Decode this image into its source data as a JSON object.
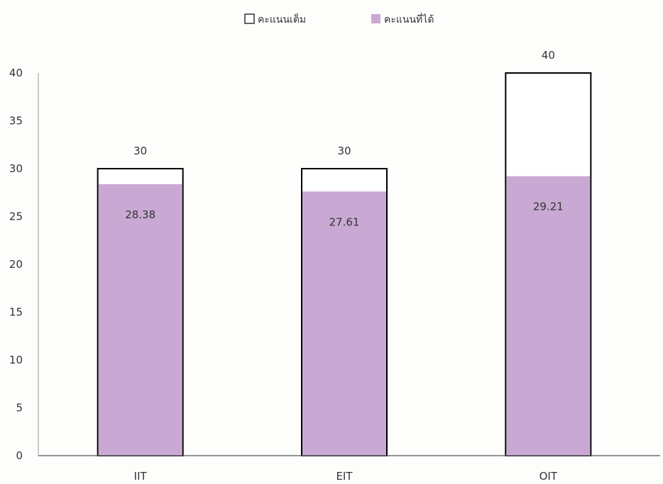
{
  "chart_data": {
    "type": "bar",
    "title": "",
    "xlabel": "",
    "ylabel": "",
    "categories": [
      "IIT",
      "EIT",
      "OIT"
    ],
    "series": [
      {
        "name": "คะแนนเต็ม",
        "values": [
          30,
          30,
          40
        ],
        "color": "#ffffff",
        "stroke": "#000000"
      },
      {
        "name": "คะแนนที่ได้",
        "values": [
          28.38,
          27.61,
          29.21
        ],
        "color": "#c9a9d3"
      }
    ],
    "data_labels": {
      "full": [
        "30",
        "30",
        "40"
      ],
      "obtained": [
        "28.38",
        "27.61",
        "29.21"
      ]
    },
    "ylim": [
      0,
      40
    ],
    "yticks": [
      "0",
      "5",
      "10",
      "15",
      "20",
      "25",
      "30",
      "35",
      "40"
    ],
    "bars_overlap": true,
    "grid": false,
    "legend_position": "top-center"
  }
}
